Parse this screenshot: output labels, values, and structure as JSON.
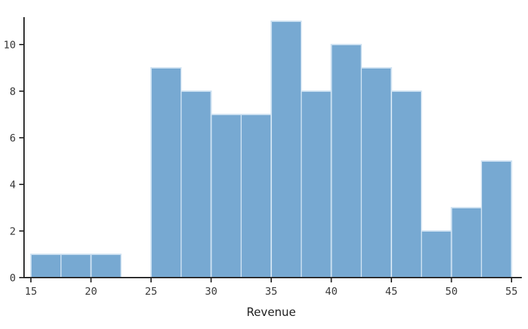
{
  "chart": {
    "xlabel": "Revenue"
  },
  "chart_data": {
    "type": "bar",
    "subtype": "histogram",
    "title": "",
    "xlabel": "Revenue",
    "ylabel": "",
    "bin_width": 2.5,
    "bin_edges": [
      15,
      17.5,
      20,
      22.5,
      25,
      27.5,
      30,
      32.5,
      35,
      37.5,
      40,
      42.5,
      45,
      47.5,
      50,
      52.5,
      55
    ],
    "counts": [
      1,
      1,
      1,
      0,
      9,
      8,
      7,
      7,
      11,
      8,
      10,
      9,
      8,
      2,
      3,
      5
    ],
    "x_ticks": [
      15,
      20,
      25,
      30,
      35,
      40,
      45,
      50,
      55
    ],
    "y_ticks": [
      0,
      2,
      4,
      6,
      8,
      10
    ],
    "xlim": [
      14.43,
      55.86
    ],
    "ylim": [
      0,
      11.2
    ],
    "grid": false,
    "legend": null,
    "colors": {
      "bar_fill": "#77A9D2",
      "bar_edge": "#CFE2F2",
      "axis": "#262626",
      "tick_label": "#3A3A3A",
      "label_text": "#1F1F1F",
      "background": "#FFFFFF"
    }
  }
}
